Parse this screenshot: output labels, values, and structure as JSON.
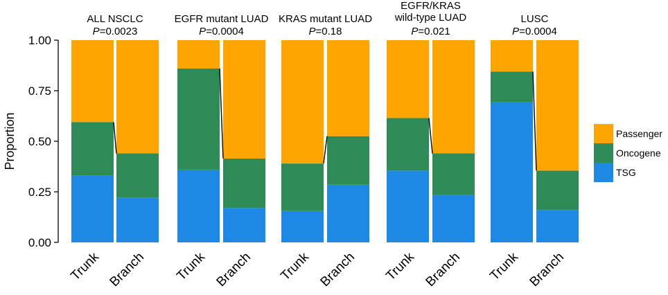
{
  "chart_data": {
    "type": "bar",
    "stacked": true,
    "normalized": true,
    "ylabel": "Proportion",
    "ylim": [
      0,
      1
    ],
    "yticks": [
      "0.00",
      "0.25",
      "0.50",
      "0.75",
      "1.00"
    ],
    "series": [
      {
        "name": "TSG",
        "color": "#1e88e5"
      },
      {
        "name": "Oncogene",
        "color": "#2e8b57"
      },
      {
        "name": "Passenger",
        "color": "#ffa500"
      }
    ],
    "legend": {
      "position": "right",
      "items": [
        "Passenger",
        "Oncogene",
        "TSG"
      ]
    },
    "panels": [
      {
        "title": [
          "ALL NSCLC"
        ],
        "p_prefix": "P",
        "p_value": "=0.0023",
        "categories": [
          "Trunk",
          "Branch"
        ],
        "bars": [
          {
            "TSG": 0.33,
            "Oncogene": 0.265,
            "Passenger": 0.405
          },
          {
            "TSG": 0.22,
            "Oncogene": 0.22,
            "Passenger": 0.56
          }
        ]
      },
      {
        "title": [
          "EGFR mutant LUAD"
        ],
        "p_prefix": "P",
        "p_value": "=0.0004",
        "categories": [
          "Trunk",
          "Branch"
        ],
        "bars": [
          {
            "TSG": 0.36,
            "Oncogene": 0.5,
            "Passenger": 0.14
          },
          {
            "TSG": 0.17,
            "Oncogene": 0.245,
            "Passenger": 0.585
          }
        ]
      },
      {
        "title": [
          "KRAS mutant LUAD"
        ],
        "p_prefix": "P",
        "p_value": "=0.18",
        "categories": [
          "Trunk",
          "Branch"
        ],
        "bars": [
          {
            "TSG": 0.155,
            "Oncogene": 0.235,
            "Passenger": 0.61
          },
          {
            "TSG": 0.285,
            "Oncogene": 0.24,
            "Passenger": 0.475
          }
        ]
      },
      {
        "title": [
          "EGFR/KRAS",
          "wild-type LUAD"
        ],
        "p_prefix": "P",
        "p_value": "=0.021",
        "categories": [
          "Trunk",
          "Branch"
        ],
        "bars": [
          {
            "TSG": 0.355,
            "Oncogene": 0.26,
            "Passenger": 0.385
          },
          {
            "TSG": 0.235,
            "Oncogene": 0.205,
            "Passenger": 0.56
          }
        ]
      },
      {
        "title": [
          "LUSC"
        ],
        "p_prefix": "P",
        "p_value": "=0.0004",
        "categories": [
          "Trunk",
          "Branch"
        ],
        "bars": [
          {
            "TSG": 0.695,
            "Oncogene": 0.15,
            "Passenger": 0.155
          },
          {
            "TSG": 0.16,
            "Oncogene": 0.195,
            "Passenger": 0.645
          }
        ]
      }
    ]
  }
}
